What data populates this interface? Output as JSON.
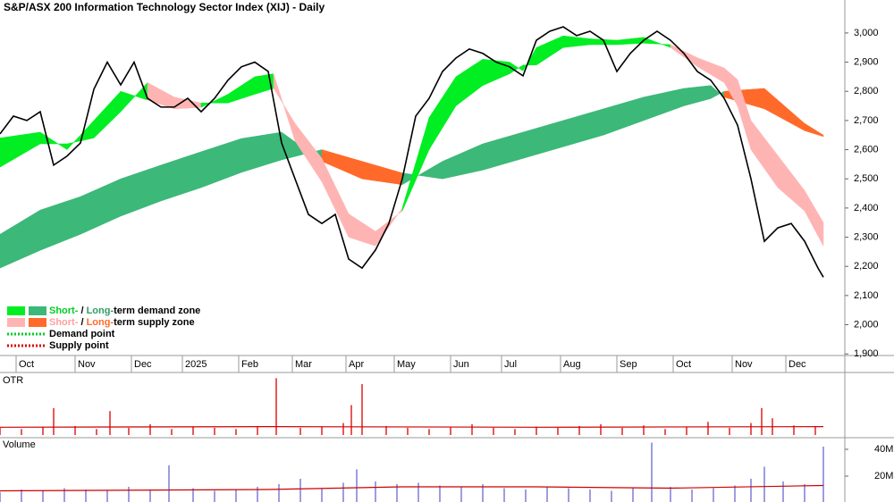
{
  "chart_data": {
    "type": "price_zones",
    "title": "S&P/ASX 200 Information Technology Sector Index (XIJ) - Daily",
    "xlim": [
      0,
      315
    ],
    "xticks": [
      {
        "value": 6,
        "label": "Oct"
      },
      {
        "value": 28,
        "label": "Nov"
      },
      {
        "value": 49,
        "label": "Dec"
      },
      {
        "value": 68,
        "label": "2025"
      },
      {
        "value": 89,
        "label": "Feb"
      },
      {
        "value": 109,
        "label": "Mar"
      },
      {
        "value": 129,
        "label": "Apr"
      },
      {
        "value": 147,
        "label": "May"
      },
      {
        "value": 168,
        "label": "Jun"
      },
      {
        "value": 187,
        "label": "Jul"
      },
      {
        "value": 209,
        "label": "Aug"
      },
      {
        "value": 230,
        "label": "Sep"
      },
      {
        "value": 251,
        "label": "Oct"
      },
      {
        "value": 273,
        "label": "Nov"
      },
      {
        "value": 293,
        "label": "Dec"
      }
    ],
    "ylim": [
      1873,
      3113
    ],
    "yticks": [
      {
        "value": 1900,
        "label": "1,900"
      },
      {
        "value": 2000,
        "label": "2,000"
      },
      {
        "value": 2100,
        "label": "2,100"
      },
      {
        "value": 2200,
        "label": "2,200"
      },
      {
        "value": 2300,
        "label": "2,300"
      },
      {
        "value": 2400,
        "label": "2,400"
      },
      {
        "value": 2500,
        "label": "2,500"
      },
      {
        "value": 2600,
        "label": "2,600"
      },
      {
        "value": 2700,
        "label": "2,700"
      },
      {
        "value": 2800,
        "label": "2,800"
      },
      {
        "value": 2900,
        "label": "2,900"
      },
      {
        "value": 3000,
        "label": "3,000"
      }
    ],
    "price": {
      "color": "#000000",
      "x": [
        0,
        5,
        10,
        15,
        20,
        25,
        30,
        35,
        40,
        45,
        50,
        55,
        60,
        65,
        70,
        75,
        80,
        85,
        90,
        95,
        100,
        105,
        110,
        115,
        120,
        125,
        130,
        135,
        140,
        145,
        150,
        155,
        160,
        165,
        170,
        175,
        180,
        185,
        190,
        195,
        200,
        205,
        210,
        215,
        220,
        225,
        230,
        235,
        240,
        245,
        250,
        255,
        260,
        265,
        270,
        275,
        280,
        285,
        290,
        295,
        300,
        305,
        307
      ],
      "values": [
        2654,
        2715,
        2700,
        2730,
        2547,
        2578,
        2623,
        2807,
        2900,
        2822,
        2900,
        2776,
        2746,
        2746,
        2776,
        2730,
        2776,
        2838,
        2884,
        2900,
        2868,
        2623,
        2500,
        2378,
        2347,
        2378,
        2225,
        2194,
        2256,
        2347,
        2500,
        2715,
        2776,
        2868,
        2914,
        2945,
        2930,
        2900,
        2884,
        2853,
        2975,
        3006,
        3021,
        2991,
        3006,
        2975,
        2868,
        2930,
        2975,
        3006,
        2975,
        2930,
        2868,
        2838,
        2776,
        2684,
        2500,
        2286,
        2332,
        2347,
        2286,
        2194,
        2163
      ]
    },
    "bands": [
      {
        "demand_color": "#3cb878",
        "supply_color": "#ff6a2a",
        "x": [
          0,
          15,
          30,
          45,
          60,
          75,
          90,
          105,
          120,
          135,
          150,
          165,
          180,
          195,
          210,
          225,
          240,
          255,
          265,
          270,
          285,
          300,
          307
        ],
        "fast": [
          2310,
          2393,
          2439,
          2500,
          2547,
          2593,
          2638,
          2660,
          2560,
          2500,
          2480,
          2560,
          2620,
          2660,
          2700,
          2740,
          2780,
          2810,
          2820,
          2780,
          2740,
          2665,
          2645
        ],
        "slow": [
          2194,
          2255,
          2310,
          2372,
          2424,
          2470,
          2522,
          2565,
          2600,
          2560,
          2520,
          2500,
          2530,
          2570,
          2610,
          2650,
          2700,
          2750,
          2775,
          2800,
          2810,
          2690,
          2650
        ]
      },
      {
        "demand_color": "#00ee22",
        "supply_color": "#ffb4b4",
        "x": [
          0,
          15,
          25,
          35,
          45,
          55,
          65,
          75,
          85,
          95,
          102,
          110,
          120,
          130,
          140,
          150,
          160,
          170,
          180,
          190,
          195,
          200,
          210,
          220,
          230,
          240,
          250,
          260,
          270,
          275,
          280,
          290,
          300,
          307
        ],
        "fast": [
          2640,
          2660,
          2600,
          2700,
          2800,
          2770,
          2740,
          2745,
          2790,
          2850,
          2860,
          2630,
          2490,
          2300,
          2270,
          2400,
          2710,
          2850,
          2910,
          2900,
          2870,
          2950,
          2990,
          2980,
          2975,
          2985,
          2950,
          2885,
          2830,
          2750,
          2600,
          2470,
          2390,
          2270
        ],
        "slow": [
          2540,
          2620,
          2620,
          2640,
          2730,
          2830,
          2780,
          2760,
          2760,
          2790,
          2810,
          2690,
          2570,
          2380,
          2320,
          2390,
          2600,
          2750,
          2820,
          2860,
          2890,
          2890,
          2950,
          2960,
          2960,
          2965,
          2960,
          2915,
          2880,
          2840,
          2700,
          2580,
          2460,
          2350
        ]
      }
    ],
    "legend": [
      {
        "colors": [
          "#00ee22",
          "#3cb878"
        ],
        "short": "Short-",
        "sep": " / ",
        "long": "Long-",
        "rest": "term demand zone",
        "short_color": "#00cc22",
        "long_color": "#2e9e62"
      },
      {
        "colors": [
          "#ffb4b4",
          "#ff6a2a"
        ],
        "short": "Short-",
        "sep": " / ",
        "long": "Long-",
        "rest": "term supply zone",
        "short_color": "#ffa0a0",
        "long_color": "#ff6a2a"
      }
    ],
    "points_legend": [
      {
        "label": "Demand point",
        "color": "#00cc22"
      },
      {
        "label": "Supply point",
        "color": "#dd0000"
      }
    ],
    "otr": {
      "title": "OTR",
      "color": "#e02020",
      "ylim": [
        0,
        100
      ],
      "x": [
        0,
        8,
        16,
        20,
        28,
        36,
        41,
        48,
        56,
        64,
        72,
        80,
        88,
        96,
        103,
        112,
        120,
        128,
        131,
        135,
        144,
        152,
        160,
        168,
        176,
        184,
        192,
        200,
        208,
        216,
        224,
        232,
        240,
        248,
        256,
        264,
        272,
        280,
        284,
        288,
        296,
        304
      ],
      "values": [
        12,
        10,
        14,
        45,
        15,
        10,
        40,
        12,
        18,
        10,
        14,
        12,
        10,
        15,
        95,
        12,
        14,
        20,
        50,
        85,
        15,
        12,
        10,
        14,
        18,
        12,
        10,
        14,
        12,
        15,
        18,
        12,
        16,
        10,
        14,
        22,
        12,
        20,
        45,
        28,
        16,
        14
      ],
      "avg_x": [
        0,
        100,
        200,
        307
      ],
      "avg": [
        13,
        14,
        13,
        14
      ]
    },
    "volume": {
      "title": "Volume",
      "color": "#7c7cd8",
      "ylim": [
        0,
        44000000
      ],
      "yticks": [
        {
          "value": 20000000,
          "label": "20M"
        },
        {
          "value": 40000000,
          "label": "40M"
        }
      ],
      "x": [
        0,
        8,
        16,
        24,
        32,
        40,
        48,
        56,
        63,
        72,
        80,
        88,
        96,
        104,
        112,
        120,
        128,
        133,
        140,
        148,
        156,
        164,
        172,
        180,
        188,
        196,
        204,
        212,
        220,
        228,
        236,
        243,
        250,
        258,
        266,
        274,
        280,
        285,
        292,
        300,
        307
      ],
      "values": [
        8000000,
        10000000,
        9000000,
        11000000,
        10000000,
        9000000,
        12000000,
        10000000,
        28000000,
        11000000,
        9000000,
        10000000,
        12000000,
        14000000,
        18000000,
        11000000,
        15000000,
        25000000,
        16000000,
        14000000,
        15000000,
        13000000,
        12000000,
        14000000,
        11000000,
        10000000,
        12000000,
        11000000,
        10000000,
        9000000,
        11000000,
        45000000,
        12000000,
        10000000,
        11000000,
        13000000,
        18000000,
        27000000,
        16000000,
        14000000,
        42000000
      ],
      "avg_x": [
        0,
        100,
        150,
        200,
        250,
        307
      ],
      "avg": [
        9000000,
        10000000,
        12000000,
        12000000,
        11000000,
        13000000
      ]
    }
  }
}
